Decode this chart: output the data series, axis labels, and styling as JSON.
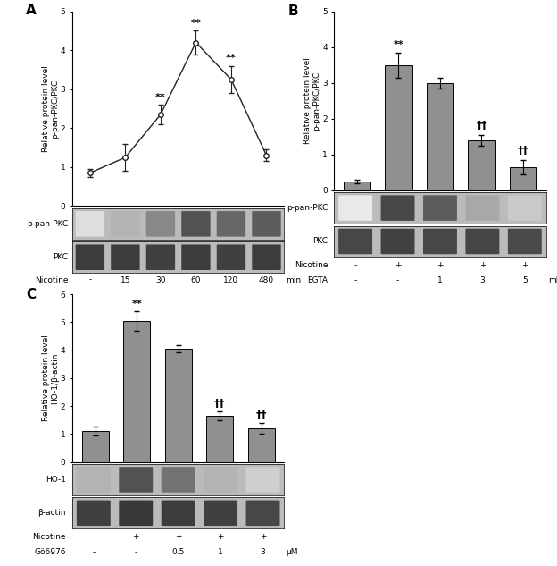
{
  "panel_A": {
    "x": [
      0,
      1,
      2,
      3,
      4,
      5
    ],
    "x_labels": [
      "-",
      "15",
      "30",
      "60",
      "120",
      "480"
    ],
    "y": [
      0.85,
      1.25,
      2.35,
      4.2,
      3.25,
      1.3
    ],
    "yerr": [
      0.1,
      0.35,
      0.25,
      0.3,
      0.35,
      0.15
    ],
    "sig": [
      "",
      "",
      "**",
      "**",
      "**",
      ""
    ],
    "ylabel": "Relative protein level\np-pan-PKC/PKC",
    "xlabel_nicotine": "Nicotine",
    "xlabel_unit": "min",
    "ylim": [
      0,
      5
    ],
    "yticks": [
      0,
      1,
      2,
      3,
      4,
      5
    ],
    "wb_label1": "p-pan-PKC",
    "wb_label2": "PKC",
    "wb_bands1": [
      0.15,
      0.35,
      0.55,
      0.8,
      0.7,
      0.75
    ],
    "wb_bands2": [
      0.9,
      0.9,
      0.88,
      0.9,
      0.88,
      0.9
    ],
    "label": "A"
  },
  "panel_B": {
    "x": [
      0,
      1,
      2,
      3,
      4
    ],
    "x_labels": [
      "-",
      "+",
      "+",
      "+",
      "+"
    ],
    "x_labels2": [
      "-",
      "-",
      "1",
      "3",
      "5"
    ],
    "y": [
      0.25,
      3.5,
      3.0,
      1.4,
      0.65
    ],
    "yerr": [
      0.05,
      0.35,
      0.15,
      0.15,
      0.2
    ],
    "sig": [
      "",
      "**",
      "",
      "",
      ""
    ],
    "sig_dagger": [
      "",
      "",
      "",
      "††",
      "††"
    ],
    "ylabel": "Relative protein level\np-pan-PKC/PKC",
    "xlabel_nicotine": "Nicotine",
    "xlabel_egta": "EGTA",
    "xlabel_unit": "mM",
    "ylim": [
      0,
      5
    ],
    "yticks": [
      0,
      1,
      2,
      3,
      4,
      5
    ],
    "wb_label1": "p-pan-PKC",
    "wb_label2": "PKC",
    "wb_bands1": [
      0.1,
      0.85,
      0.75,
      0.4,
      0.25
    ],
    "wb_bands2": [
      0.85,
      0.87,
      0.85,
      0.86,
      0.84
    ],
    "label": "B"
  },
  "panel_C": {
    "x": [
      0,
      1,
      2,
      3,
      4
    ],
    "x_labels": [
      "-",
      "+",
      "+",
      "+",
      "+"
    ],
    "x_labels2": [
      "-",
      "-",
      "0.5",
      "1",
      "3"
    ],
    "y": [
      1.1,
      5.05,
      4.05,
      1.65,
      1.2
    ],
    "yerr": [
      0.15,
      0.35,
      0.12,
      0.15,
      0.18
    ],
    "sig": [
      "",
      "**",
      "",
      "",
      ""
    ],
    "sig_dagger": [
      "",
      "",
      "",
      "††",
      "††"
    ],
    "ylabel": "Relative protein level\nHO-1/β-actin",
    "xlabel_nicotine": "Nicotine",
    "xlabel_go": "Gö6976",
    "xlabel_unit": "μM",
    "ylim": [
      0,
      6
    ],
    "yticks": [
      0,
      1,
      2,
      3,
      4,
      5,
      6
    ],
    "wb_label1": "HO-1",
    "wb_label2": "β-actin",
    "wb_bands1": [
      0.35,
      0.8,
      0.65,
      0.35,
      0.22
    ],
    "wb_bands2": [
      0.88,
      0.92,
      0.9,
      0.88,
      0.85
    ],
    "label": "C"
  },
  "bar_color": "#909090",
  "wb_bg": "#bbbbbb",
  "wb_band_dark": "#1a1a1a",
  "wb_band_light": "#888888"
}
